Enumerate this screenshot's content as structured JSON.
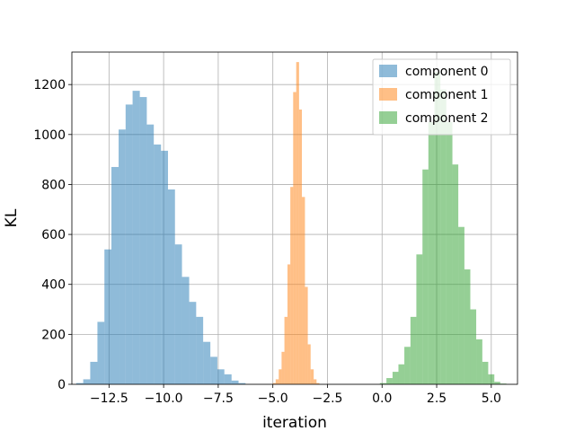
{
  "chart_data": {
    "type": "bar",
    "subtype": "histogram",
    "xlabel": "iteration",
    "ylabel": "KL",
    "xlim": [
      -14.2,
      6.2
    ],
    "ylim": [
      0,
      1330
    ],
    "xticks": [
      -12.5,
      -10.0,
      -7.5,
      -5.0,
      -2.5,
      0.0,
      2.5,
      5.0
    ],
    "xtick_labels": [
      "−12.5",
      "−10.0",
      "−7.5",
      "−5.0",
      "−2.5",
      "0.0",
      "2.5",
      "5.0"
    ],
    "yticks": [
      0,
      200,
      400,
      600,
      800,
      1000,
      1200
    ],
    "ytick_labels": [
      "0",
      "200",
      "400",
      "600",
      "800",
      "1000",
      "1200"
    ],
    "grid": true,
    "legend_position": "top-right",
    "series": [
      {
        "name": "component 0",
        "color": "#1f77b4",
        "alpha": 0.5,
        "bins": [
          [
            -14.0,
            -13.68,
            5
          ],
          [
            -13.68,
            -13.36,
            20
          ],
          [
            -13.36,
            -13.03,
            90
          ],
          [
            -13.03,
            -12.71,
            250
          ],
          [
            -12.71,
            -12.39,
            540
          ],
          [
            -12.39,
            -12.06,
            870
          ],
          [
            -12.06,
            -11.74,
            1020
          ],
          [
            -11.74,
            -11.42,
            1120
          ],
          [
            -11.42,
            -11.09,
            1175
          ],
          [
            -11.09,
            -10.77,
            1150
          ],
          [
            -10.77,
            -10.45,
            1040
          ],
          [
            -10.45,
            -10.12,
            960
          ],
          [
            -10.12,
            -9.8,
            935
          ],
          [
            -9.8,
            -9.48,
            780
          ],
          [
            -9.48,
            -9.16,
            560
          ],
          [
            -9.16,
            -8.83,
            430
          ],
          [
            -8.83,
            -8.51,
            330
          ],
          [
            -8.51,
            -8.19,
            270
          ],
          [
            -8.19,
            -7.86,
            170
          ],
          [
            -7.86,
            -7.54,
            110
          ],
          [
            -7.54,
            -7.22,
            60
          ],
          [
            -7.22,
            -6.89,
            40
          ],
          [
            -6.89,
            -6.57,
            15
          ],
          [
            -6.57,
            -6.25,
            5
          ]
        ]
      },
      {
        "name": "component 1",
        "color": "#ff7f0e",
        "alpha": 0.5,
        "bins": [
          [
            -5.0,
            -4.87,
            5
          ],
          [
            -4.87,
            -4.73,
            20
          ],
          [
            -4.73,
            -4.6,
            60
          ],
          [
            -4.6,
            -4.47,
            130
          ],
          [
            -4.47,
            -4.33,
            270
          ],
          [
            -4.33,
            -4.2,
            480
          ],
          [
            -4.2,
            -4.07,
            790
          ],
          [
            -4.07,
            -3.93,
            1170
          ],
          [
            -3.93,
            -3.8,
            1290
          ],
          [
            -3.8,
            -3.67,
            1100
          ],
          [
            -3.67,
            -3.53,
            750
          ],
          [
            -3.53,
            -3.4,
            390
          ],
          [
            -3.4,
            -3.27,
            160
          ],
          [
            -3.27,
            -3.13,
            60
          ],
          [
            -3.13,
            -3.0,
            20
          ],
          [
            -3.0,
            -2.87,
            5
          ]
        ]
      },
      {
        "name": "component 2",
        "color": "#2ca02c",
        "alpha": 0.5,
        "bins": [
          [
            -0.1,
            0.2,
            5
          ],
          [
            0.2,
            0.48,
            25
          ],
          [
            0.48,
            0.75,
            50
          ],
          [
            0.75,
            1.02,
            80
          ],
          [
            1.02,
            1.3,
            150
          ],
          [
            1.3,
            1.57,
            270
          ],
          [
            1.57,
            1.85,
            520
          ],
          [
            1.85,
            2.12,
            860
          ],
          [
            2.12,
            2.4,
            1050
          ],
          [
            2.4,
            2.67,
            1250
          ],
          [
            2.67,
            2.94,
            1180
          ],
          [
            2.94,
            3.22,
            1050
          ],
          [
            3.22,
            3.49,
            880
          ],
          [
            3.49,
            3.77,
            630
          ],
          [
            3.77,
            4.04,
            460
          ],
          [
            4.04,
            4.31,
            300
          ],
          [
            4.31,
            4.59,
            180
          ],
          [
            4.59,
            4.86,
            90
          ],
          [
            4.86,
            5.14,
            40
          ],
          [
            5.14,
            5.41,
            10
          ],
          [
            5.41,
            5.69,
            3
          ]
        ]
      }
    ]
  }
}
